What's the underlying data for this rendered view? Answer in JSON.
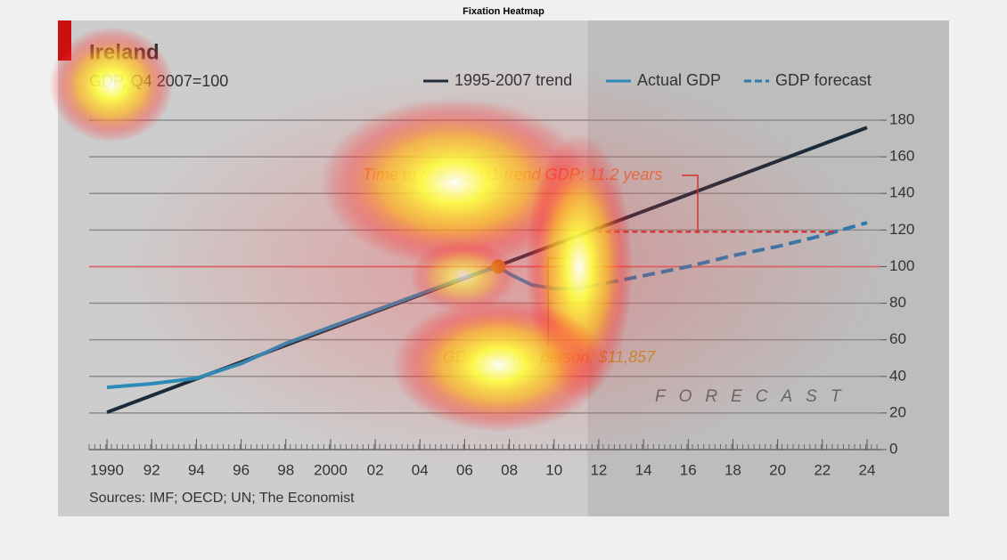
{
  "figure_title": "Fixation Heatmap",
  "chart_data": {
    "type": "line",
    "title": "Ireland",
    "subtitle": "GDP, Q4 2007=100",
    "xlim": [
      1989.2,
      2024.6
    ],
    "ylim": [
      0,
      180
    ],
    "xticks": [
      1990,
      {
        "value": 1992,
        "label": "92"
      },
      {
        "value": 1994,
        "label": "94"
      },
      {
        "value": 1996,
        "label": "96"
      },
      {
        "value": 1998,
        "label": "98"
      },
      2000,
      {
        "value": 2002,
        "label": "02"
      },
      {
        "value": 2004,
        "label": "04"
      },
      {
        "value": 2006,
        "label": "06"
      },
      {
        "value": 2008,
        "label": "08"
      },
      {
        "value": 2010,
        "label": "10"
      },
      {
        "value": 2012,
        "label": "12"
      },
      {
        "value": 2014,
        "label": "14"
      },
      {
        "value": 2016,
        "label": "16"
      },
      {
        "value": 2018,
        "label": "18"
      },
      {
        "value": 2020,
        "label": "20"
      },
      {
        "value": 2022,
        "label": "22"
      },
      {
        "value": 2024,
        "label": "24"
      }
    ],
    "yticks": [
      0,
      20,
      40,
      60,
      80,
      100,
      120,
      140,
      160,
      180
    ],
    "grid": true,
    "legend": "top-right",
    "series": [
      {
        "name": "1995-2007 trend",
        "color": "#1c2b3a",
        "style": "solid",
        "x": [
          1990,
          2024
        ],
        "values": [
          20.4,
          176
        ]
      },
      {
        "name": "Actual GDP",
        "color": "#2a8ab8",
        "style": "solid",
        "x": [
          1990,
          1992,
          1994,
          1996,
          1998,
          2000,
          2002,
          2004,
          2006,
          2007.5,
          2008,
          2009,
          2010,
          2011,
          2011.5
        ],
        "values": [
          34,
          36,
          39,
          47,
          58,
          67,
          76,
          85,
          94,
          100,
          96,
          90,
          88,
          88,
          89
        ]
      },
      {
        "name": "GDP forecast",
        "color": "#2a7ab0",
        "style": "dashed",
        "x": [
          2011.5,
          2014,
          2016,
          2018,
          2020,
          2022,
          2024
        ],
        "values": [
          89,
          95,
          100,
          106,
          111,
          117,
          124
        ]
      }
    ],
    "reference_line": 100,
    "forecast_start": 2011.5,
    "highlight_point": {
      "x": 2007.5,
      "y": 100
    },
    "time_arrow": {
      "y": 119,
      "x": [
        2011.5,
        2022.7
      ]
    },
    "gap_arrow": {
      "x": 2011.5,
      "y": [
        89,
        119
      ]
    },
    "annotations": [
      "Time to reach 2011 trend GDP: 11.2 years",
      "GDP gap per person: $11,857",
      "FORECAST"
    ],
    "source": "Sources: IMF; OECD; UN; The Economist"
  }
}
